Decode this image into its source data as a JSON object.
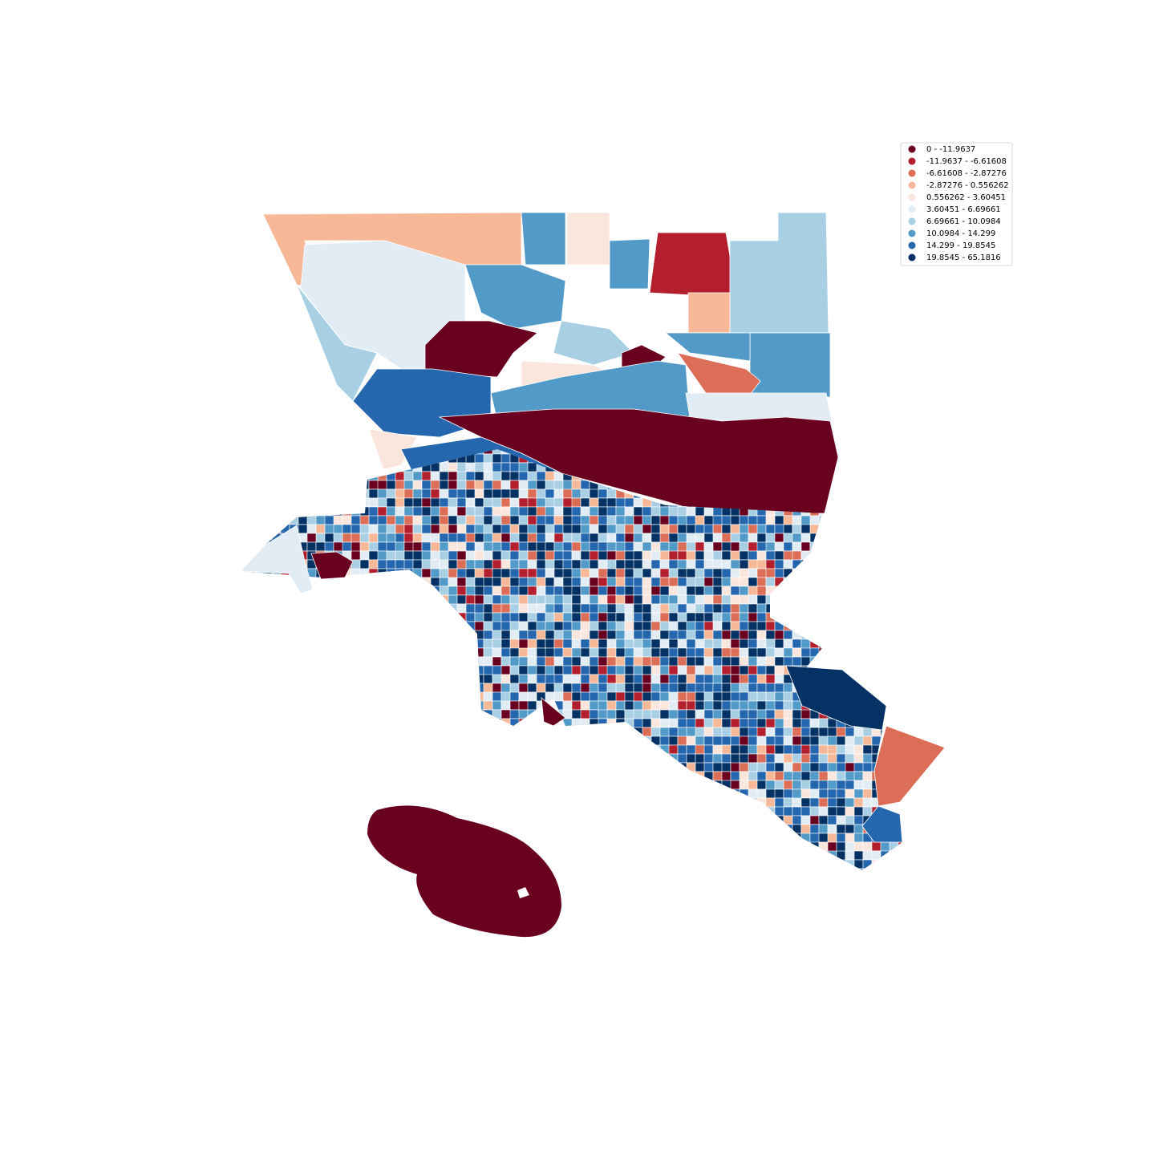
{
  "legend": {
    "entries": [
      {
        "label": "0 - -11.9637",
        "color": "#6a0020"
      },
      {
        "label": "-11.9637 - -6.61608",
        "color": "#b41f2e"
      },
      {
        "label": "-6.61608 - -2.87276",
        "color": "#dc6e57"
      },
      {
        "label": "-2.87276 - 0.556262",
        "color": "#f6b897"
      },
      {
        "label": "0.556262 - 3.60451",
        "color": "#fae6dd"
      },
      {
        "label": "3.60451 - 6.69661",
        "color": "#e1ecf4"
      },
      {
        "label": "6.69661 - 10.0984",
        "color": "#a9cfe5"
      },
      {
        "label": "10.0984 - 14.299",
        "color": "#529ac7"
      },
      {
        "label": "14.299 - 19.8545",
        "color": "#2467ae"
      },
      {
        "label": "19.8545 - 65.1816",
        "color": "#053265"
      }
    ]
  }
}
